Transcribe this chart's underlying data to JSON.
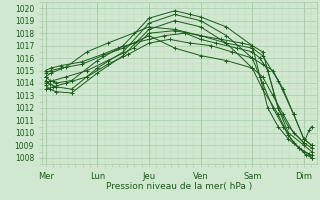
{
  "bg_color": "#cfe8cf",
  "grid_color_major": "#a8cca8",
  "grid_color_minor": "#bdd9bd",
  "line_color": "#1a5c1a",
  "xlabel": "Pression niveau de la mer( hPa )",
  "ylim": [
    1007.5,
    1020.5
  ],
  "xlim": [
    -0.08,
    5.25
  ],
  "yticks": [
    1008,
    1009,
    1010,
    1011,
    1012,
    1013,
    1014,
    1015,
    1016,
    1017,
    1018,
    1019,
    1020
  ],
  "xtick_labels": [
    "Mer",
    "Lun",
    "Jeu",
    "Ven",
    "Sam",
    "Dim"
  ],
  "xtick_positions": [
    0,
    1,
    2,
    3,
    4,
    5
  ],
  "lines": [
    {
      "x": [
        0,
        0.08,
        0.2,
        0.5,
        1.0,
        1.5,
        2.0,
        2.5,
        2.8,
        3.0,
        3.5,
        4.0,
        4.15,
        4.3,
        4.5,
        4.7,
        4.9,
        5.05,
        5.15
      ],
      "y": [
        1014.5,
        1014.2,
        1014.0,
        1014.2,
        1015.8,
        1017.0,
        1019.2,
        1019.8,
        1019.5,
        1019.3,
        1018.5,
        1017.0,
        1014.5,
        1012.0,
        1010.5,
        1009.5,
        1008.8,
        1008.2,
        1008.0
      ]
    },
    {
      "x": [
        0,
        0.08,
        0.2,
        0.5,
        1.0,
        1.5,
        2.0,
        2.5,
        3.0,
        3.5,
        4.0,
        4.2,
        4.4,
        4.6,
        4.8,
        5.0,
        5.15
      ],
      "y": [
        1014.2,
        1013.9,
        1013.7,
        1013.5,
        1015.2,
        1016.5,
        1018.8,
        1019.5,
        1019.0,
        1017.8,
        1016.0,
        1014.0,
        1012.0,
        1010.5,
        1009.2,
        1008.5,
        1008.2
      ]
    },
    {
      "x": [
        0,
        0.08,
        0.2,
        0.5,
        1.0,
        1.5,
        2.0,
        2.5,
        3.0,
        3.5,
        4.0,
        4.2,
        4.5,
        4.7,
        4.9,
        5.1,
        5.15
      ],
      "y": [
        1013.8,
        1013.5,
        1013.3,
        1013.2,
        1014.8,
        1016.2,
        1018.3,
        1019.0,
        1018.5,
        1017.2,
        1015.2,
        1013.5,
        1011.5,
        1009.8,
        1008.8,
        1008.3,
        1008.0
      ]
    },
    {
      "x": [
        0,
        0.1,
        0.3,
        0.7,
        1.1,
        1.4,
        1.7,
        2.0,
        2.3,
        2.7,
        3.0,
        3.3,
        3.7,
        4.0,
        4.15,
        4.3,
        4.5,
        4.7,
        5.0,
        5.15
      ],
      "y": [
        1015.0,
        1015.2,
        1015.4,
        1015.7,
        1016.3,
        1016.8,
        1017.2,
        1017.5,
        1017.8,
        1018.0,
        1017.5,
        1017.2,
        1016.8,
        1016.5,
        1016.0,
        1015.0,
        1012.0,
        1010.0,
        1009.0,
        1008.5
      ]
    },
    {
      "x": [
        0,
        0.1,
        0.3,
        0.7,
        1.1,
        1.5,
        2.0,
        2.5,
        3.0,
        3.5,
        4.0,
        4.2,
        4.4,
        4.6,
        4.8,
        5.0,
        5.15
      ],
      "y": [
        1014.8,
        1015.0,
        1015.2,
        1015.5,
        1016.2,
        1016.8,
        1017.8,
        1016.8,
        1016.2,
        1015.8,
        1015.2,
        1014.5,
        1013.0,
        1011.5,
        1010.0,
        1009.2,
        1008.8
      ]
    },
    {
      "x": [
        0,
        0.15,
        0.4,
        0.8,
        1.2,
        1.6,
        2.0,
        2.4,
        2.8,
        3.2,
        3.6,
        4.0,
        4.2,
        4.4,
        4.6,
        4.8,
        5.0,
        5.15
      ],
      "y": [
        1013.5,
        1013.7,
        1014.0,
        1014.5,
        1015.5,
        1016.3,
        1017.2,
        1017.5,
        1017.2,
        1017.0,
        1016.5,
        1016.0,
        1015.5,
        1015.0,
        1013.5,
        1011.5,
        1009.5,
        1009.0
      ]
    },
    {
      "x": [
        0,
        0.15,
        0.4,
        0.8,
        1.2,
        1.7,
        2.0,
        2.5,
        3.0,
        3.5,
        4.0,
        4.2,
        4.5,
        4.8,
        5.0,
        5.15
      ],
      "y": [
        1014.0,
        1014.2,
        1014.5,
        1015.0,
        1015.8,
        1016.8,
        1018.0,
        1018.2,
        1017.8,
        1017.2,
        1016.8,
        1016.2,
        1014.2,
        1011.5,
        1009.5,
        1009.0
      ]
    },
    {
      "x": [
        0,
        0.1,
        0.4,
        0.8,
        1.2,
        1.7,
        2.0,
        2.5,
        3.0,
        3.4,
        3.8,
        4.0,
        4.2,
        4.5,
        4.7,
        5.0,
        5.1,
        5.15
      ],
      "y": [
        1014.5,
        1014.8,
        1015.3,
        1016.5,
        1017.2,
        1018.0,
        1018.5,
        1018.3,
        1017.8,
        1017.5,
        1017.2,
        1017.0,
        1016.5,
        1012.0,
        1010.5,
        1009.2,
        1010.2,
        1010.5
      ]
    }
  ]
}
